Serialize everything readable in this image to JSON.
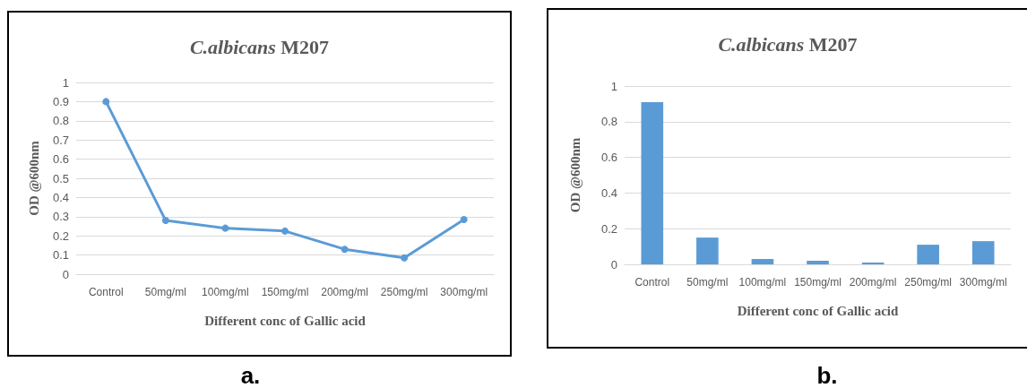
{
  "chart_data": [
    {
      "type": "line",
      "title": "C.albicans M207",
      "xlabel": "Different conc of Gallic acid",
      "ylabel": "OD @600nm",
      "categories": [
        "Control",
        "50mg/ml",
        "100mg/ml",
        "150mg/ml",
        "200mg/ml",
        "250mg/ml",
        "300mg/ml"
      ],
      "series": [
        {
          "color": "#5b9bd5",
          "values": [
            0.9,
            0.28,
            0.24,
            0.225,
            0.13,
            0.085,
            0.285
          ]
        }
      ],
      "ylim": [
        0,
        1
      ],
      "yticks": [
        0,
        0.1,
        0.2,
        0.3,
        0.4,
        0.5,
        0.6,
        0.7,
        0.8,
        0.9,
        1
      ],
      "grid": "y",
      "marker": "circle",
      "line_style": "solid",
      "annotations": [
        "a."
      ]
    },
    {
      "type": "bar",
      "title": "C.albicans M207",
      "xlabel": "Different conc of Gallic acid",
      "ylabel": "OD @600nm",
      "categories": [
        "Control",
        "50mg/ml",
        "100mg/ml",
        "150mg/ml",
        "200mg/ml",
        "250mg/ml",
        "300mg/ml"
      ],
      "series": [
        {
          "color": "#5b9bd5",
          "values": [
            0.91,
            0.15,
            0.03,
            0.02,
            0.01,
            0.11,
            0.13
          ]
        }
      ],
      "ylim": [
        0,
        1
      ],
      "yticks": [
        0,
        0.2,
        0.4,
        0.6,
        0.8,
        1
      ],
      "grid": "y",
      "annotations": [
        "b."
      ]
    }
  ]
}
